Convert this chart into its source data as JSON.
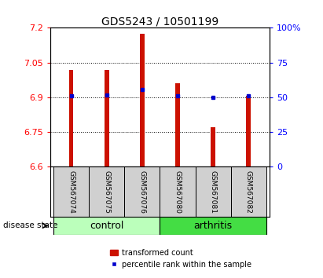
{
  "title": "GDS5243 / 10501199",
  "samples": [
    "GSM567074",
    "GSM567075",
    "GSM567076",
    "GSM567080",
    "GSM567081",
    "GSM567082"
  ],
  "bar_values": [
    7.02,
    7.02,
    7.175,
    6.96,
    6.77,
    6.905
  ],
  "bar_bottom": 6.6,
  "percentile_values": [
    6.905,
    6.91,
    6.935,
    6.905,
    6.9,
    6.905
  ],
  "ylim_left": [
    6.6,
    7.2
  ],
  "ylim_right": [
    0,
    100
  ],
  "yticks_left": [
    6.6,
    6.75,
    6.9,
    7.05,
    7.2
  ],
  "yticks_right": [
    0,
    25,
    50,
    75,
    100
  ],
  "ytick_labels_left": [
    "6.6",
    "6.75",
    "6.9",
    "7.05",
    "7.2"
  ],
  "ytick_labels_right": [
    "0",
    "25",
    "50",
    "75",
    "100%"
  ],
  "bar_color": "#cc1100",
  "marker_color": "#0000cc",
  "control_color": "#bbffbb",
  "arthritis_color": "#44dd44",
  "control_label": "control",
  "arthritis_label": "arthritis",
  "disease_state_label": "disease state",
  "legend_bar_label": "transformed count",
  "legend_marker_label": "percentile rank within the sample",
  "title_fontsize": 10,
  "tick_fontsize": 8,
  "sample_fontsize": 6.5,
  "group_fontsize": 9,
  "legend_fontsize": 7,
  "bar_width": 0.12
}
